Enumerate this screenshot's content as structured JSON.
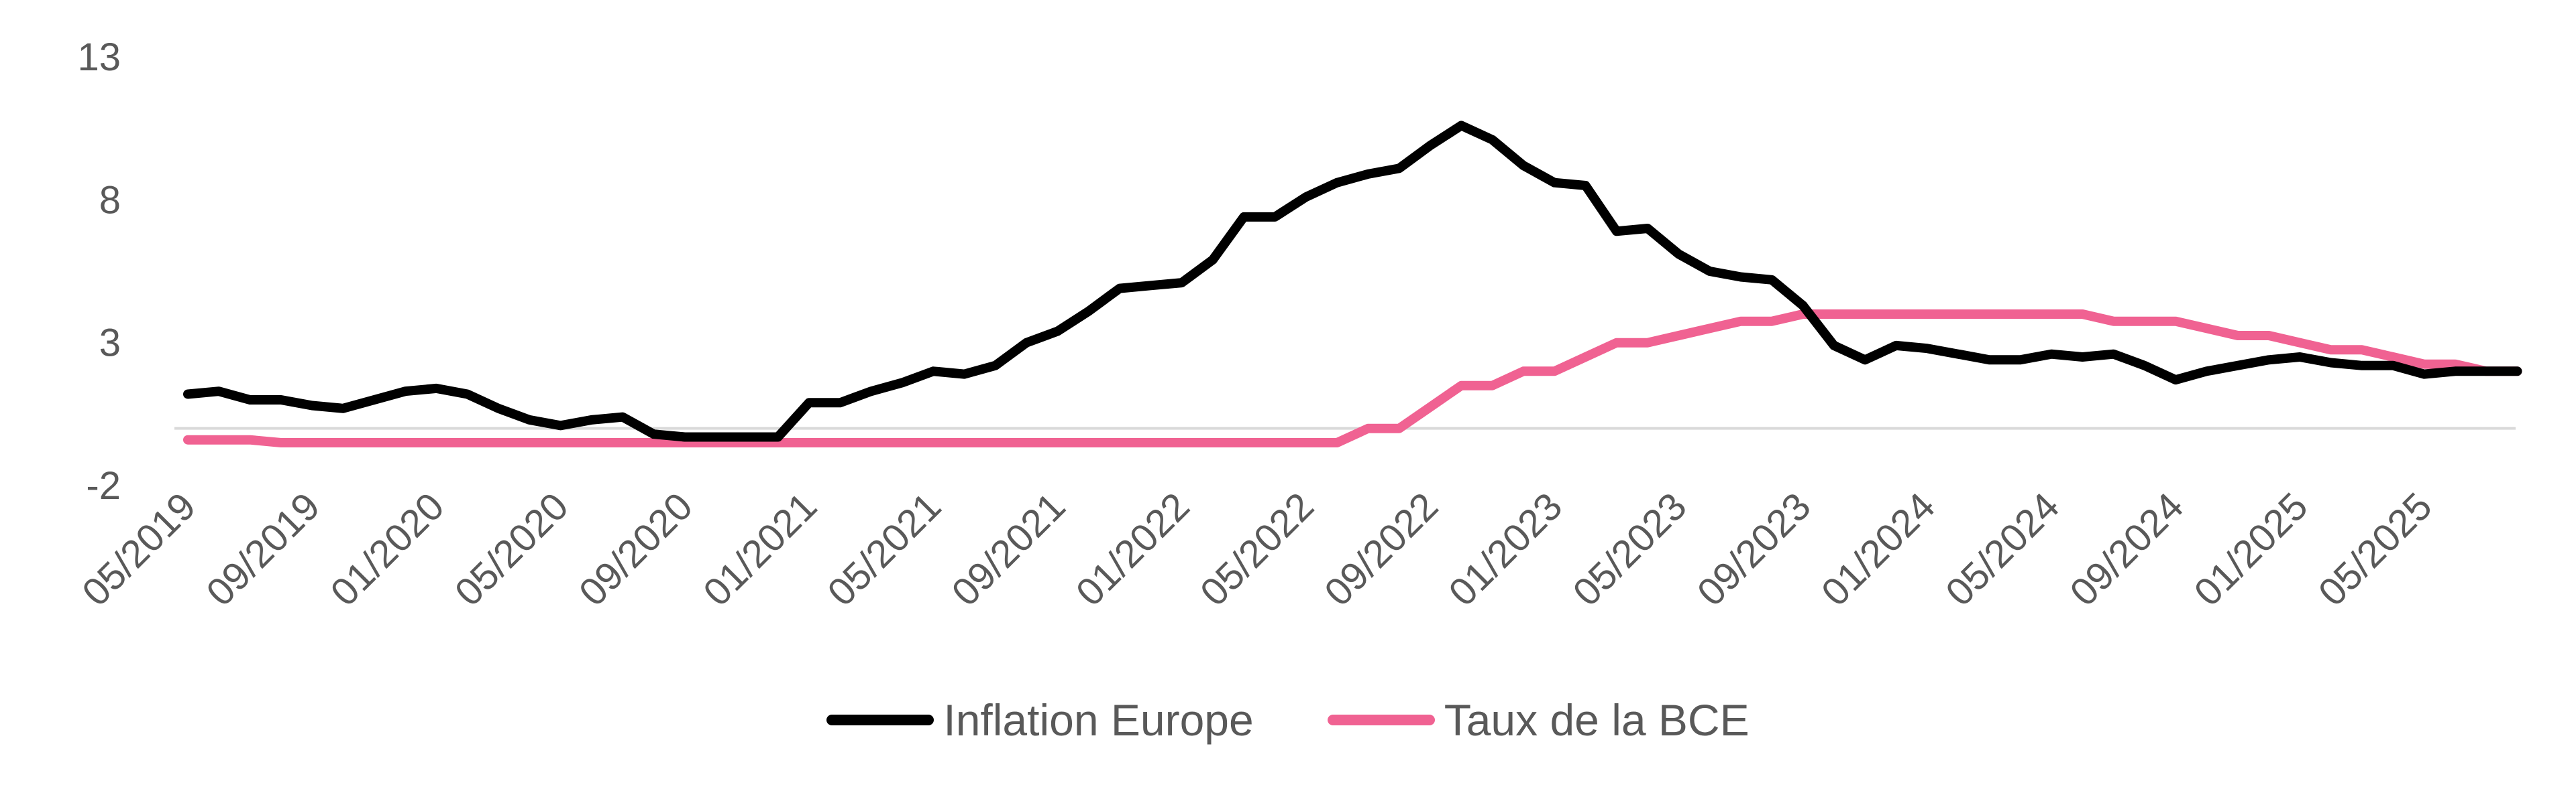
{
  "chart_data": {
    "type": "line",
    "ylim": [
      -2,
      13
    ],
    "y_ticks": [
      "13",
      "8",
      "3",
      "-2"
    ],
    "x_tick_labels": [
      "05/2019",
      "09/2019",
      "01/2020",
      "05/2020",
      "09/2020",
      "01/2021",
      "05/2021",
      "09/2021",
      "01/2022",
      "05/2022",
      "09/2022",
      "01/2023",
      "05/2023",
      "09/2023",
      "01/2024",
      "05/2024",
      "09/2024",
      "01/2025",
      "05/2025"
    ],
    "x": [
      "05/2019",
      "06/2019",
      "07/2019",
      "08/2019",
      "09/2019",
      "10/2019",
      "11/2019",
      "12/2019",
      "01/2020",
      "02/2020",
      "03/2020",
      "04/2020",
      "05/2020",
      "06/2020",
      "07/2020",
      "08/2020",
      "09/2020",
      "10/2020",
      "11/2020",
      "12/2020",
      "01/2021",
      "02/2021",
      "03/2021",
      "04/2021",
      "05/2021",
      "06/2021",
      "07/2021",
      "08/2021",
      "09/2021",
      "10/2021",
      "11/2021",
      "12/2021",
      "01/2022",
      "02/2022",
      "03/2022",
      "04/2022",
      "05/2022",
      "06/2022",
      "07/2022",
      "08/2022",
      "09/2022",
      "10/2022",
      "11/2022",
      "12/2022",
      "01/2023",
      "02/2023",
      "03/2023",
      "04/2023",
      "05/2023",
      "06/2023",
      "07/2023",
      "08/2023",
      "09/2023",
      "10/2023",
      "11/2023",
      "12/2023",
      "01/2024",
      "02/2024",
      "03/2024",
      "04/2024",
      "05/2024",
      "06/2024",
      "07/2024",
      "08/2024",
      "09/2024",
      "10/2024",
      "11/2024",
      "12/2024",
      "01/2025",
      "02/2025",
      "03/2025",
      "04/2025",
      "05/2025",
      "06/2025",
      "07/2025",
      "08/2025"
    ],
    "series": [
      {
        "name": "Inflation Europe",
        "color": "#000000",
        "values": [
          1.2,
          1.3,
          1.0,
          1.0,
          0.8,
          0.7,
          1.0,
          1.3,
          1.4,
          1.2,
          0.7,
          0.3,
          0.1,
          0.3,
          0.4,
          -0.2,
          -0.3,
          -0.3,
          -0.3,
          -0.3,
          0.9,
          0.9,
          1.3,
          1.6,
          2.0,
          1.9,
          2.2,
          3.0,
          3.4,
          4.1,
          4.9,
          5.0,
          5.1,
          5.9,
          7.4,
          7.4,
          8.1,
          8.6,
          8.9,
          9.1,
          9.9,
          10.6,
          10.1,
          9.2,
          8.6,
          8.5,
          6.9,
          7.0,
          6.1,
          5.5,
          5.3,
          5.2,
          4.3,
          2.9,
          2.4,
          2.9,
          2.8,
          2.6,
          2.4,
          2.4,
          2.6,
          2.5,
          2.6,
          2.2,
          1.7,
          2.0,
          2.2,
          2.4,
          2.5,
          2.3,
          2.2,
          2.2,
          1.9,
          2.0,
          2.0,
          2.0
        ]
      },
      {
        "name": "Taux de la BCE",
        "color": "#f06292",
        "values": [
          -0.4,
          -0.4,
          -0.4,
          -0.5,
          -0.5,
          -0.5,
          -0.5,
          -0.5,
          -0.5,
          -0.5,
          -0.5,
          -0.5,
          -0.5,
          -0.5,
          -0.5,
          -0.5,
          -0.5,
          -0.5,
          -0.5,
          -0.5,
          -0.5,
          -0.5,
          -0.5,
          -0.5,
          -0.5,
          -0.5,
          -0.5,
          -0.5,
          -0.5,
          -0.5,
          -0.5,
          -0.5,
          -0.5,
          -0.5,
          -0.5,
          -0.5,
          -0.5,
          -0.5,
          0.0,
          0.0,
          0.75,
          1.5,
          1.5,
          2.0,
          2.0,
          2.5,
          3.0,
          3.0,
          3.25,
          3.5,
          3.75,
          3.75,
          4.0,
          4.0,
          4.0,
          4.0,
          4.0,
          4.0,
          4.0,
          4.0,
          4.0,
          4.0,
          3.75,
          3.75,
          3.75,
          3.5,
          3.25,
          3.25,
          3.0,
          2.75,
          2.75,
          2.5,
          2.25,
          2.25,
          2.0,
          2.0
        ]
      }
    ]
  }
}
